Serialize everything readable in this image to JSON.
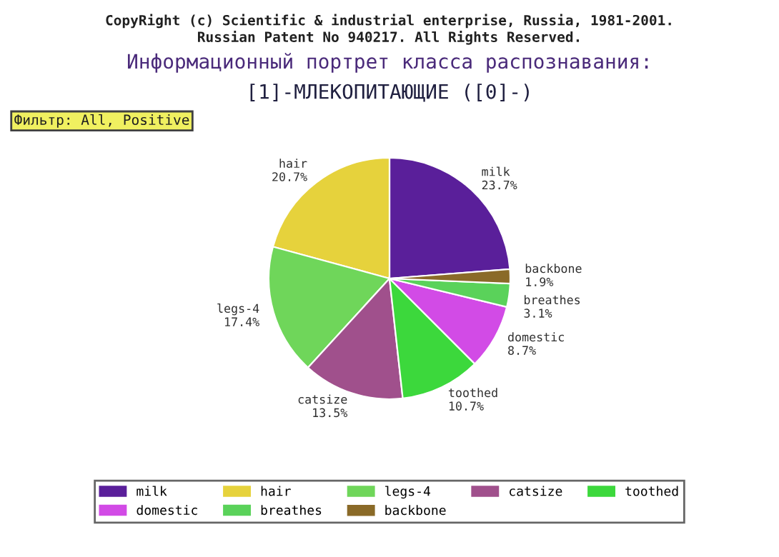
{
  "chart_data": {
    "type": "pie",
    "title": "Информационный портрет класса распознавания:",
    "subtitle": "[1]-МЛЕКОПИТАЮЩИЕ ([0]-)",
    "annotations": [
      "CopyRight (c) Scientific & industrial enterprise, Russia, 1981-2001.",
      "Russian Patent No 940217. All Rights Reserved.",
      "Фильтр: All, Positive"
    ],
    "categories": [
      "milk",
      "hair",
      "legs-4",
      "catsize",
      "toothed",
      "domestic",
      "breathes",
      "backbone"
    ],
    "values": [
      23.7,
      20.7,
      17.4,
      13.5,
      10.7,
      8.7,
      3.1,
      1.9
    ],
    "value_labels": [
      "23.7%",
      "20.7%",
      "17.4%",
      "13.5%",
      "10.7%",
      "8.7%",
      "3.1%",
      "1.9%"
    ],
    "colors": [
      "#5a1f9a",
      "#e6d23c",
      "#6fd65a",
      "#a0508c",
      "#3cd83c",
      "#d24be6",
      "#5ad25a",
      "#8a6a28"
    ],
    "legend": "bottom"
  }
}
